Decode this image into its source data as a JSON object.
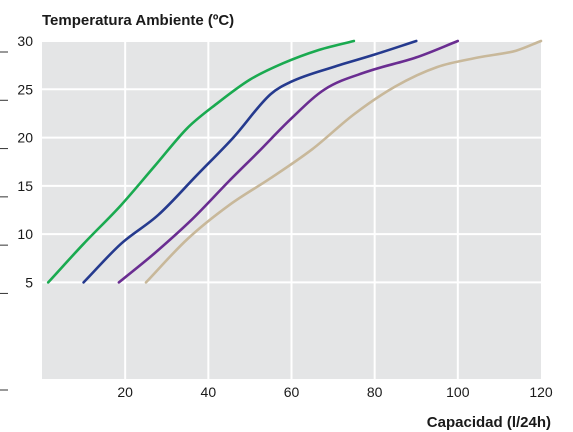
{
  "chart_data": {
    "type": "line",
    "title": "",
    "ylabel": "Temperatura Ambiente (ºC)",
    "xlabel": "Capacidad (l/24h)",
    "xlim": [
      0,
      120
    ],
    "ylim": [
      -5,
      30
    ],
    "x_ticks": [
      20,
      40,
      60,
      80,
      100,
      120
    ],
    "y_ticks": [
      5,
      10,
      15,
      20,
      25,
      30
    ],
    "grid": true,
    "legend": "none",
    "series": [
      {
        "color": "#1aaa50",
        "x": [
          1.5,
          10,
          19,
          27,
          35,
          42,
          50,
          58,
          66,
          75
        ],
        "y": [
          5,
          9,
          13,
          17,
          21,
          23.5,
          26,
          27.7,
          29,
          30
        ]
      },
      {
        "color": "#253a8e",
        "x": [
          10,
          19,
          28,
          37,
          46,
          55,
          60,
          70,
          80,
          90
        ],
        "y": [
          5,
          9,
          12,
          16,
          20,
          24.5,
          25.8,
          27.3,
          28.6,
          30
        ]
      },
      {
        "color": "#6a2d91",
        "x": [
          18.5,
          27,
          36,
          45,
          52,
          60,
          68,
          78,
          90,
          100
        ],
        "y": [
          5,
          8,
          11.5,
          15.5,
          18.5,
          22,
          25,
          26.8,
          28.3,
          30
        ]
      },
      {
        "color": "#c8b89a",
        "x": [
          25,
          35,
          45,
          55,
          65,
          75,
          85,
          95,
          105,
          114,
          120
        ],
        "y": [
          5,
          9.5,
          13,
          15.8,
          18.8,
          22.4,
          25.3,
          27.3,
          28.3,
          29,
          30
        ]
      }
    ]
  }
}
